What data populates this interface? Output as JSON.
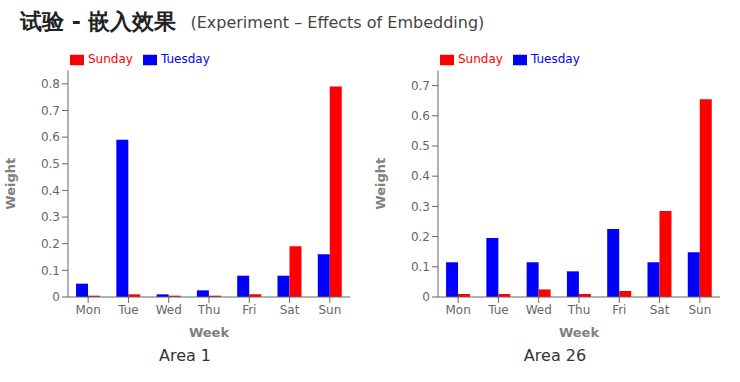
{
  "title": "试验 - 嵌入效果",
  "subtitle": "(Experiment – Effects of Embedding)",
  "chart_data": [
    {
      "type": "bar",
      "title": "Area 1",
      "x_label": "Week",
      "y_label": "Weight",
      "categories": [
        "Mon",
        "Tue",
        "Wed",
        "Thu",
        "Fri",
        "Sat",
        "Sun"
      ],
      "series": [
        {
          "name": "Tuesday",
          "color": "#0000ff",
          "values": [
            0.05,
            0.59,
            0.01,
            0.025,
            0.08,
            0.08,
            0.16
          ]
        },
        {
          "name": "Sunday",
          "color": "#ff0000",
          "values": [
            0.005,
            0.01,
            0.005,
            0.005,
            0.01,
            0.19,
            0.79
          ]
        }
      ],
      "ylim": [
        0,
        0.85
      ],
      "yticks": [
        0.0,
        0.1,
        0.2,
        0.3,
        0.4,
        0.5,
        0.6,
        0.7,
        0.8
      ],
      "legend": "upper left",
      "grid": false
    },
    {
      "type": "bar",
      "title": "Area 26",
      "x_label": "Week",
      "y_label": "Weight",
      "categories": [
        "Mon",
        "Tue",
        "Wed",
        "Thu",
        "Fri",
        "Sat",
        "Sun"
      ],
      "series": [
        {
          "name": "Tuesday",
          "color": "#0000ff",
          "values": [
            0.115,
            0.195,
            0.115,
            0.085,
            0.225,
            0.115,
            0.148
          ]
        },
        {
          "name": "Sunday",
          "color": "#ff0000",
          "values": [
            0.01,
            0.01,
            0.025,
            0.01,
            0.02,
            0.285,
            0.655
          ]
        }
      ],
      "ylim": [
        0,
        0.75
      ],
      "yticks": [
        0.0,
        0.1,
        0.2,
        0.3,
        0.4,
        0.5,
        0.6,
        0.7
      ],
      "legend": "upper left",
      "grid": false
    }
  ]
}
